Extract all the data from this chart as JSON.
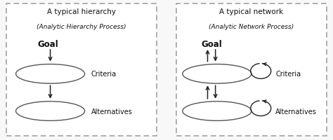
{
  "bg_color": "#f8f8f8",
  "left_title1": "A typical hierarchy",
  "left_title2": "(Analytic Hierarchy Process)",
  "right_title1": "A typical network",
  "right_title2": "(Analytic Network Process)",
  "left_goal_label": "Goal",
  "left_criteria_label": "Criteria",
  "left_alternatives_label": "Alternatives",
  "right_goal_label": "Goal",
  "right_criteria_label": "Criteria",
  "right_alternatives_label": "Alternatives",
  "ellipse_edge": "#555555",
  "arrow_color": "#222222",
  "text_color": "#111111",
  "border_color": "#999999",
  "title1_fontsize": 7.5,
  "title2_fontsize": 6.5,
  "goal_fontsize": 8.5,
  "label_fontsize": 7.0
}
